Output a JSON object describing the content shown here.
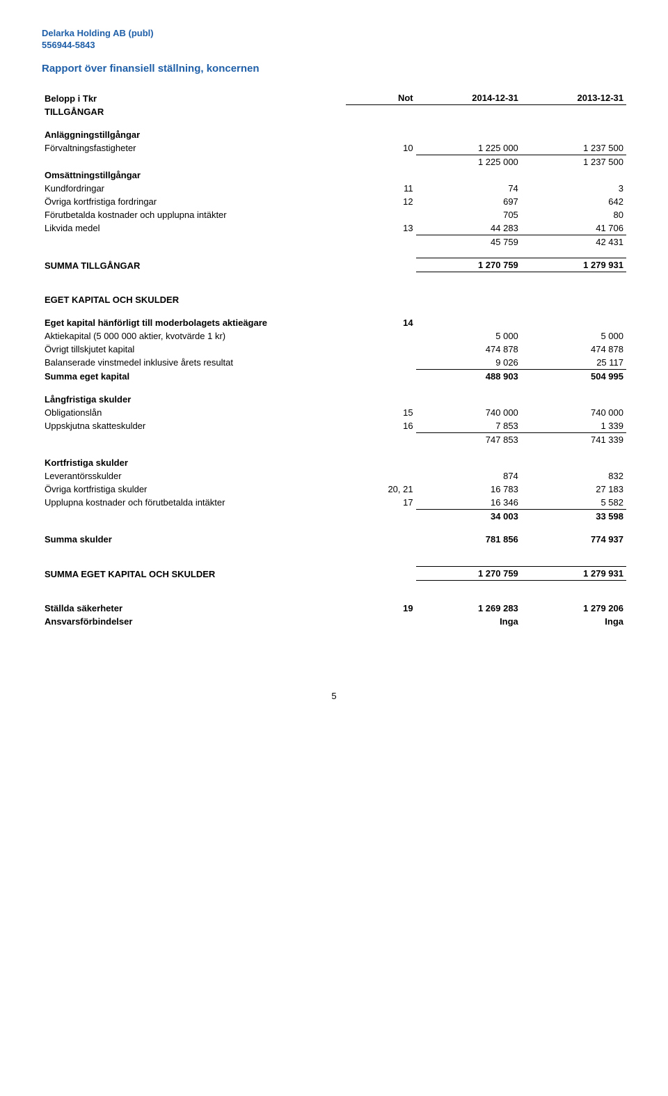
{
  "header": {
    "company": "Delarka Holding AB (publ)",
    "orgnr": "556944-5843",
    "title": "Rapport över finansiell ställning, koncernen"
  },
  "columns": {
    "label": "Belopp i Tkr",
    "not": "Not",
    "c1": "2014-12-31",
    "c2": "2013-12-31"
  },
  "s_tillgangar": "TILLGÅNGAR",
  "s_anlaggning": "Anläggningstillgångar",
  "forvaltningsfastigheter": {
    "l": "Förvaltningsfastigheter",
    "n": "10",
    "v1": "1 225 000",
    "v2": "1 237 500"
  },
  "anlaggning_sum": {
    "v1": "1 225 000",
    "v2": "1 237 500"
  },
  "s_omsattning": "Omsättningstillgångar",
  "kundfordringar": {
    "l": "Kundfordringar",
    "n": "11",
    "v1": "74",
    "v2": "3"
  },
  "ovriga_kf_fordr": {
    "l": "Övriga kortfristiga fordringar",
    "n": "12",
    "v1": "697",
    "v2": "642"
  },
  "forutbetalda": {
    "l": "Förutbetalda kostnader och upplupna intäkter",
    "n": "",
    "v1": "705",
    "v2": "80"
  },
  "likvida": {
    "l": "Likvida medel",
    "n": "13",
    "v1": "44 283",
    "v2": "41 706"
  },
  "omsattning_sum": {
    "v1": "45 759",
    "v2": "42 431"
  },
  "summa_tillgangar": {
    "l": "SUMMA TILLGÅNGAR",
    "v1": "1 270 759",
    "v2": "1 279 931"
  },
  "s_eget_skulder": "EGET KAPITAL OCH SKULDER",
  "s_eget_moderbolag": "Eget kapital hänförligt till moderbolagets aktieägare",
  "eget_moderbolag_not": "14",
  "aktiekapital": {
    "l": "Aktiekapital (5 000 000 aktier, kvotvärde 1 kr)",
    "v1": "5 000",
    "v2": "5 000"
  },
  "ovrigt_tillskjutet": {
    "l": "Övrigt tillskjutet kapital",
    "v1": "474 878",
    "v2": "474 878"
  },
  "balanserade": {
    "l": "Balanserade vinstmedel inklusive årets resultat",
    "v1": "9 026",
    "v2": "25 117"
  },
  "summa_eget": {
    "l": "Summa eget kapital",
    "v1": "488 903",
    "v2": "504 995"
  },
  "s_langfristiga": "Långfristiga skulder",
  "obligationslan": {
    "l": "Obligationslån",
    "n": "15",
    "v1": "740 000",
    "v2": "740 000"
  },
  "uppskjutna_skatt": {
    "l": "Uppskjutna skatteskulder",
    "n": "16",
    "v1": "7 853",
    "v2": "1 339"
  },
  "langfristiga_sum": {
    "v1": "747 853",
    "v2": "741 339"
  },
  "s_kortfristiga": "Kortfristiga skulder",
  "leverantor": {
    "l": "Leverantörsskulder",
    "n": "",
    "v1": "874",
    "v2": "832"
  },
  "ovriga_kf_skulder": {
    "l": "Övriga kortfristiga skulder",
    "n": "20, 21",
    "v1": "16 783",
    "v2": "27 183"
  },
  "upplupna": {
    "l": "Upplupna kostnader och förutbetalda intäkter",
    "n": "17",
    "v1": "16 346",
    "v2": "5 582"
  },
  "kortfristiga_sum": {
    "v1": "34 003",
    "v2": "33 598"
  },
  "summa_skulder": {
    "l": "Summa skulder",
    "v1": "781 856",
    "v2": "774 937"
  },
  "summa_eget_skulder": {
    "l": "SUMMA EGET KAPITAL OCH SKULDER",
    "v1": "1 270 759",
    "v2": "1 279 931"
  },
  "stallda": {
    "l": "Ställda säkerheter",
    "n": "19",
    "v1": "1 269 283",
    "v2": "1 279 206"
  },
  "ansvars": {
    "l": "Ansvarsförbindelser",
    "v1": "Inga",
    "v2": "Inga"
  },
  "page": "5"
}
